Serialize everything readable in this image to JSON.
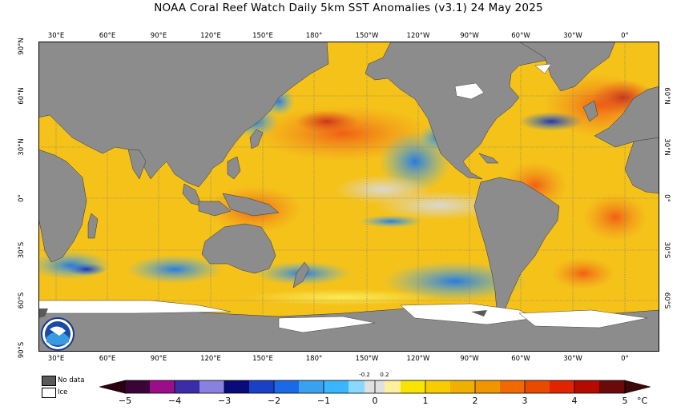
{
  "title": "NOAA Coral Reef Watch Daily 5km SST Anomalies  (v3.1)   24 May 2025",
  "longitude_ticks": [
    "30°E",
    "60°E",
    "90°E",
    "120°E",
    "150°E",
    "180°",
    "150°W",
    "120°W",
    "90°W",
    "60°W",
    "30°W",
    "0°"
  ],
  "latitude_ticks_left": [
    "90°N",
    "60°N",
    "30°N",
    "0°",
    "30°S",
    "60°S",
    "90°S"
  ],
  "latitude_ticks_right": [
    "60°N",
    "30°N",
    "0°",
    "30°S",
    "60°S"
  ],
  "legend": {
    "no_data": "No data",
    "ice": "Ice"
  },
  "colorbar": {
    "labels": [
      "−5",
      "−4",
      "−3",
      "−2",
      "−1",
      "0",
      "1",
      "2",
      "3",
      "4",
      "5"
    ],
    "small_labels": [
      "-0.2",
      "0.2"
    ],
    "unit": "°C"
  },
  "colors": {
    "land": "#8c8c8c",
    "ice": "#ffffff",
    "no_data": "#5a5a5a",
    "near_zero": "#d9d9d9"
  },
  "logo_text": "NOAA"
}
